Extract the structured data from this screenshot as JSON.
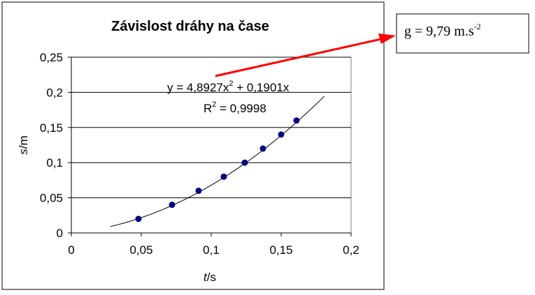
{
  "chart_data": {
    "type": "scatter",
    "title": "Závislost dráhy na čase",
    "xlabel": {
      "italic": "t",
      "unit": "/s"
    },
    "ylabel": {
      "italic": "s",
      "unit": "/m"
    },
    "xlim": [
      0,
      0.2
    ],
    "ylim": [
      0,
      0.25
    ],
    "x_ticks": [
      "0",
      "0,05",
      "0,1",
      "0,15",
      "0,2"
    ],
    "y_ticks": [
      "0",
      "0,05",
      "0,1",
      "0,15",
      "0,2",
      "0,25"
    ],
    "grid": "horizontal",
    "marker_color": "#000080",
    "points": [
      {
        "x": 0.048,
        "y": 0.02
      },
      {
        "x": 0.072,
        "y": 0.04
      },
      {
        "x": 0.091,
        "y": 0.06
      },
      {
        "x": 0.109,
        "y": 0.08
      },
      {
        "x": 0.124,
        "y": 0.1
      },
      {
        "x": 0.137,
        "y": 0.12
      },
      {
        "x": 0.15,
        "y": 0.14
      },
      {
        "x": 0.161,
        "y": 0.16
      }
    ],
    "trendline": {
      "type": "polynomial",
      "a": 4.8927,
      "b": 0.1901,
      "x_range": [
        0.028,
        0.181
      ],
      "equation": {
        "lhs": "y = 4,8927x",
        "exp": "2",
        "rhs": " + 0,1901x"
      },
      "r2": {
        "lhs": "R",
        "exp": "2",
        "rhs": " = 0,9998"
      }
    }
  },
  "result": {
    "lhs": "g = 9,79 m.s",
    "exp": "-2",
    "arrow_color": "#ff0000"
  }
}
